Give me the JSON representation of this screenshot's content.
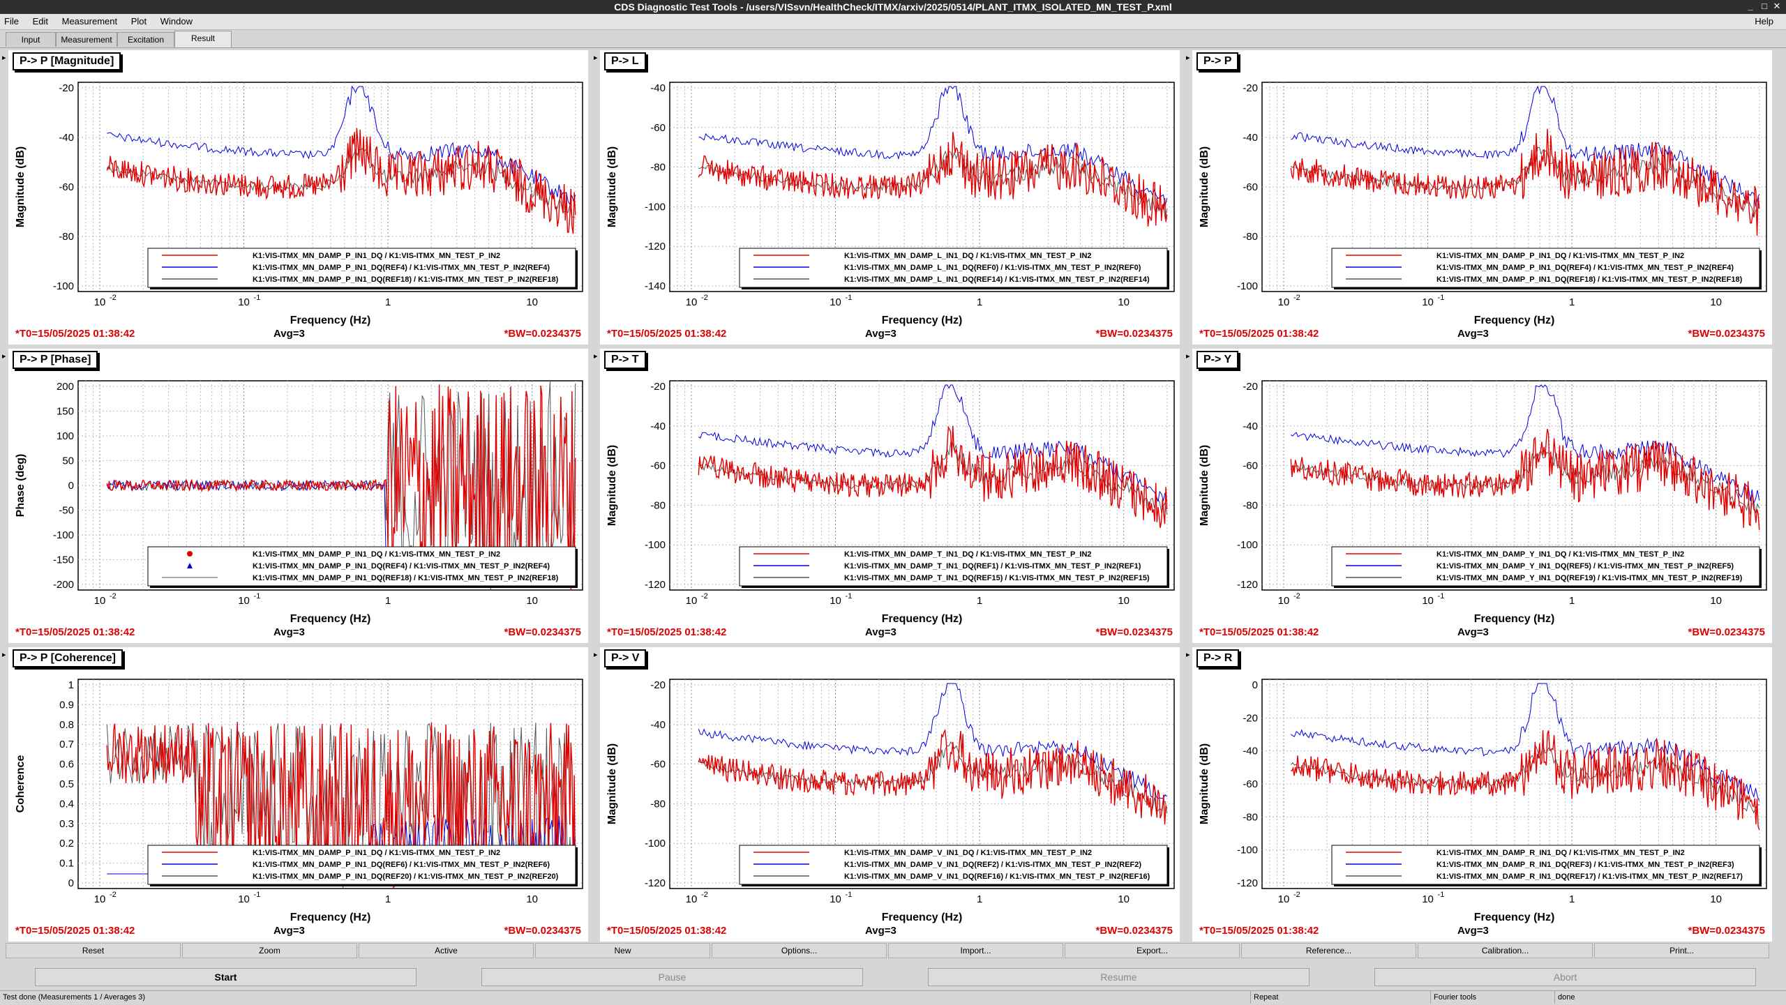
{
  "window": {
    "title": "CDS Diagnostic Test Tools - /users/VISsvn/HealthCheck/ITMX/arxiv/2025/0514/PLANT_ITMX_ISOLATED_MN_TEST_P.xml"
  },
  "menu": [
    "File",
    "Edit",
    "Measurement",
    "Plot",
    "Window"
  ],
  "menu_help": "Help",
  "tabs": [
    "Input",
    "Measurement",
    "Excitation",
    "Result"
  ],
  "active_tab": "Result",
  "footer": {
    "t0": "*T0=15/05/2025 01:38:42",
    "avg": "Avg=3",
    "bw": "*BW=0.0234375"
  },
  "xaxis": {
    "label": "Frequency (Hz)",
    "ticks": [
      "10",
      "-2",
      "10",
      "-1",
      "1",
      "10"
    ]
  },
  "panels": [
    {
      "id": "p-mag",
      "tag": "1",
      "title": "P-> P [Magnitude]",
      "ylabel": "Magnitude (dB)",
      "yticks": [
        "-20",
        "-40",
        "-60",
        "-80",
        "-100"
      ],
      "legend": [
        "K1:VIS-ITMX_MN_DAMP_P_IN1_DQ / K1:VIS-ITMX_MN_TEST_P_IN2",
        "K1:VIS-ITMX_MN_DAMP_P_IN1_DQ(REF4) / K1:VIS-ITMX_MN_TEST_P_IN2(REF4)",
        "K1:VIS-ITMX_MN_DAMP_P_IN1_DQ(REF18) / K1:VIS-ITMX_MN_TEST_P_IN2(REF18)"
      ]
    },
    {
      "id": "p-l",
      "tag": "2",
      "title": "P-> L",
      "ylabel": "Magnitude (dB)",
      "yticks": [
        "-40",
        "-60",
        "-80",
        "-100",
        "-120",
        "-140"
      ],
      "legend": [
        "K1:VIS-ITMX_MN_DAMP_L_IN1_DQ / K1:VIS-ITMX_MN_TEST_P_IN2",
        "K1:VIS-ITMX_MN_DAMP_L_IN1_DQ(REF0) / K1:VIS-ITMX_MN_TEST_P_IN2(REF0)",
        "K1:VIS-ITMX_MN_DAMP_L_IN1_DQ(REF14) / K1:VIS-ITMX_MN_TEST_P_IN2(REF14)"
      ]
    },
    {
      "id": "p-p",
      "tag": "3",
      "title": "P-> P",
      "ylabel": "Magnitude (dB)",
      "yticks": [
        "-20",
        "-40",
        "-60",
        "-80",
        "-100"
      ],
      "legend": [
        "K1:VIS-ITMX_MN_DAMP_P_IN1_DQ / K1:VIS-ITMX_MN_TEST_P_IN2",
        "K1:VIS-ITMX_MN_DAMP_P_IN1_DQ(REF4) / K1:VIS-ITMX_MN_TEST_P_IN2(REF4)",
        "K1:VIS-ITMX_MN_DAMP_P_IN1_DQ(REF18) / K1:VIS-ITMX_MN_TEST_P_IN2(REF18)"
      ]
    },
    {
      "id": "p-phase",
      "tag": "4",
      "title": "P-> P [Phase]",
      "ylabel": "Phase (deg)",
      "yticks": [
        "200",
        "150",
        "100",
        "50",
        "0",
        "-50",
        "-100",
        "-150",
        "-200"
      ],
      "legend": [
        "K1:VIS-ITMX_MN_DAMP_P_IN1_DQ / K1:VIS-ITMX_MN_TEST_P_IN2",
        "K1:VIS-ITMX_MN_DAMP_P_IN1_DQ(REF4) / K1:VIS-ITMX_MN_TEST_P_IN2(REF4)",
        "K1:VIS-ITMX_MN_DAMP_P_IN1_DQ(REF18) / K1:VIS-ITMX_MN_TEST_P_IN2(REF18)"
      ]
    },
    {
      "id": "p-t",
      "tag": "5",
      "title": "P-> T",
      "ylabel": "Magnitude (dB)",
      "yticks": [
        "-20",
        "-40",
        "-60",
        "-80",
        "-100",
        "-120"
      ],
      "legend": [
        "K1:VIS-ITMX_MN_DAMP_T_IN1_DQ / K1:VIS-ITMX_MN_TEST_P_IN2",
        "K1:VIS-ITMX_MN_DAMP_T_IN1_DQ(REF1) / K1:VIS-ITMX_MN_TEST_P_IN2(REF1)",
        "K1:VIS-ITMX_MN_DAMP_T_IN1_DQ(REF15) / K1:VIS-ITMX_MN_TEST_P_IN2(REF15)"
      ]
    },
    {
      "id": "p-y",
      "tag": "6",
      "title": "P-> Y",
      "ylabel": "Magnitude (dB)",
      "yticks": [
        "-20",
        "-40",
        "-60",
        "-80",
        "-100",
        "-120"
      ],
      "legend": [
        "K1:VIS-ITMX_MN_DAMP_Y_IN1_DQ / K1:VIS-ITMX_MN_TEST_P_IN2",
        "K1:VIS-ITMX_MN_DAMP_Y_IN1_DQ(REF5) / K1:VIS-ITMX_MN_TEST_P_IN2(REF5)",
        "K1:VIS-ITMX_MN_DAMP_Y_IN1_DQ(REF19) / K1:VIS-ITMX_MN_TEST_P_IN2(REF19)"
      ]
    },
    {
      "id": "p-coh",
      "tag": "7",
      "title": "P-> P [Coherence]",
      "ylabel": "Coherence",
      "yticks": [
        "1",
        "0.9",
        "0.8",
        "0.7",
        "0.6",
        "0.5",
        "0.4",
        "0.3",
        "0.2",
        "0.1",
        "0"
      ],
      "legend": [
        "K1:VIS-ITMX_MN_DAMP_P_IN1_DQ / K1:VIS-ITMX_MN_TEST_P_IN2",
        "K1:VIS-ITMX_MN_DAMP_P_IN1_DQ(REF6) / K1:VIS-ITMX_MN_TEST_P_IN2(REF6)",
        "K1:VIS-ITMX_MN_DAMP_P_IN1_DQ(REF20) / K1:VIS-ITMX_MN_TEST_P_IN2(REF20)"
      ]
    },
    {
      "id": "p-v",
      "tag": "8",
      "title": "P-> V",
      "ylabel": "Magnitude (dB)",
      "yticks": [
        "-20",
        "-40",
        "-60",
        "-80",
        "-100",
        "-120"
      ],
      "legend": [
        "K1:VIS-ITMX_MN_DAMP_V_IN1_DQ / K1:VIS-ITMX_MN_TEST_P_IN2",
        "K1:VIS-ITMX_MN_DAMP_V_IN1_DQ(REF2) / K1:VIS-ITMX_MN_TEST_P_IN2(REF2)",
        "K1:VIS-ITMX_MN_DAMP_V_IN1_DQ(REF16) / K1:VIS-ITMX_MN_TEST_P_IN2(REF16)"
      ]
    },
    {
      "id": "p-r",
      "tag": "9",
      "title": "P-> R",
      "ylabel": "Magnitude (dB)",
      "yticks": [
        "0",
        "-20",
        "-40",
        "-60",
        "-80",
        "-100",
        "-120"
      ],
      "legend": [
        "K1:VIS-ITMX_MN_DAMP_R_IN1_DQ / K1:VIS-ITMX_MN_TEST_P_IN2",
        "K1:VIS-ITMX_MN_DAMP_R_IN1_DQ(REF3) / K1:VIS-ITMX_MN_TEST_P_IN2(REF3)",
        "K1:VIS-ITMX_MN_DAMP_R_IN1_DQ(REF17) / K1:VIS-ITMX_MN_TEST_P_IN2(REF17)"
      ]
    }
  ],
  "series_colors": [
    "#e00000",
    "#0000e0",
    "#555555"
  ],
  "toolbar": [
    "Reset",
    "Zoom",
    "Active",
    "New",
    "Options...",
    "Import...",
    "Export...",
    "Reference...",
    "Calibration...",
    "Print..."
  ],
  "actions": [
    "Start",
    "Pause",
    "Resume",
    "Abort"
  ],
  "status": {
    "main": "Test done (Measurements 1 / Averages 3)",
    "repeat": "Repeat",
    "fourier": "Fourier tools",
    "state": "done"
  }
}
